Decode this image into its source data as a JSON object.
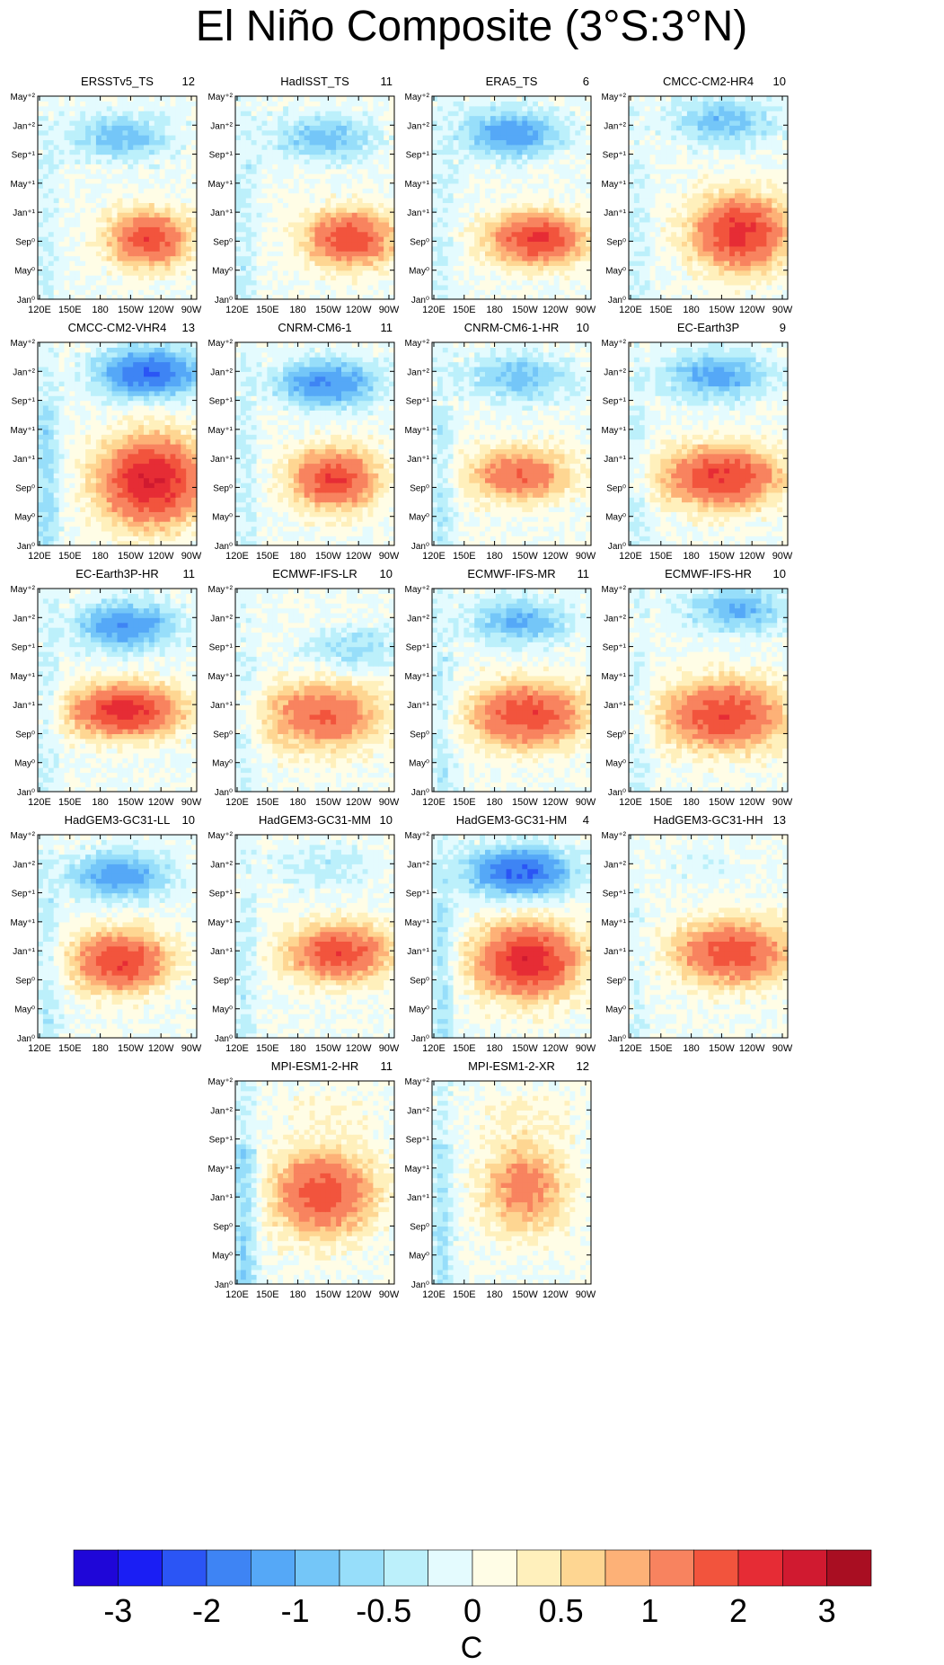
{
  "title": "El Niño Composite (3°S:3°N)",
  "chart_data": {
    "type": "heatmap",
    "variable": "SST anomaly composite (Hovmöller, longitude vs time)",
    "x_ticks": [
      "120E",
      "150E",
      "180",
      "150W",
      "120W",
      "90W"
    ],
    "y_ticks": [
      "Jan⁰",
      "May⁰",
      "Sep⁰",
      "Jan⁺¹",
      "May⁺¹",
      "Sep⁺¹",
      "Jan⁺²",
      "May⁺²"
    ],
    "panels": [
      {
        "name": "ERSSTv5_TS",
        "count": "12",
        "warm_peak": 1.9,
        "warm_center_lon": 0.7,
        "warm_center_time": 0.3,
        "warm_width": 0.24,
        "warm_height": 0.13,
        "cold_peak": -0.9,
        "cold_center_lon": 0.52,
        "cold_center_time": 0.8,
        "west_cold": -0.25
      },
      {
        "name": "HadISST_TS",
        "count": "11",
        "warm_peak": 1.9,
        "warm_center_lon": 0.72,
        "warm_center_time": 0.3,
        "warm_width": 0.26,
        "warm_height": 0.13,
        "cold_peak": -0.9,
        "cold_center_lon": 0.55,
        "cold_center_time": 0.8,
        "west_cold": -0.35
      },
      {
        "name": "ERA5_TS",
        "count": "6",
        "warm_peak": 2.1,
        "warm_center_lon": 0.66,
        "warm_center_time": 0.3,
        "warm_width": 0.28,
        "warm_height": 0.12,
        "cold_peak": -1.3,
        "cold_center_lon": 0.5,
        "cold_center_time": 0.82,
        "west_cold": -0.3
      },
      {
        "name": "CMCC-CM2-HR4",
        "count": "10",
        "warm_peak": 2.2,
        "warm_center_lon": 0.7,
        "warm_center_time": 0.33,
        "warm_width": 0.28,
        "warm_height": 0.17,
        "cold_peak": -0.9,
        "cold_center_lon": 0.6,
        "cold_center_time": 0.88,
        "west_cold": -0.3
      },
      {
        "name": "CMCC-CM2-VHR4",
        "count": "13",
        "warm_peak": 2.6,
        "warm_center_lon": 0.72,
        "warm_center_time": 0.32,
        "warm_width": 0.3,
        "warm_height": 0.2,
        "cold_peak": -2.1,
        "cold_center_lon": 0.7,
        "cold_center_time": 0.85,
        "west_cold": -0.6
      },
      {
        "name": "CNRM-CM6-1",
        "count": "11",
        "warm_peak": 2.0,
        "warm_center_lon": 0.62,
        "warm_center_time": 0.33,
        "warm_width": 0.25,
        "warm_height": 0.14,
        "cold_peak": -1.5,
        "cold_center_lon": 0.58,
        "cold_center_time": 0.8,
        "west_cold": -0.3
      },
      {
        "name": "CNRM-CM6-1-HR",
        "count": "10",
        "warm_peak": 1.5,
        "warm_center_lon": 0.55,
        "warm_center_time": 0.35,
        "warm_width": 0.3,
        "warm_height": 0.12,
        "cold_peak": -0.9,
        "cold_center_lon": 0.55,
        "cold_center_time": 0.83,
        "west_cold": -0.4
      },
      {
        "name": "EC-Earth3P",
        "count": "9",
        "warm_peak": 2.1,
        "warm_center_lon": 0.58,
        "warm_center_time": 0.34,
        "warm_width": 0.34,
        "warm_height": 0.14,
        "cold_peak": -1.2,
        "cold_center_lon": 0.55,
        "cold_center_time": 0.84,
        "west_cold": -0.3
      },
      {
        "name": "EC-Earth3P-HR",
        "count": "11",
        "warm_peak": 2.3,
        "warm_center_lon": 0.55,
        "warm_center_time": 0.4,
        "warm_width": 0.32,
        "warm_height": 0.12,
        "cold_peak": -1.4,
        "cold_center_lon": 0.55,
        "cold_center_time": 0.82,
        "west_cold": -0.3
      },
      {
        "name": "ECMWF-IFS-LR",
        "count": "10",
        "warm_peak": 1.5,
        "warm_center_lon": 0.55,
        "warm_center_time": 0.38,
        "warm_width": 0.36,
        "warm_height": 0.16,
        "cold_peak": -0.6,
        "cold_center_lon": 0.75,
        "cold_center_time": 0.7,
        "west_cold": -0.3
      },
      {
        "name": "ECMWF-IFS-MR",
        "count": "11",
        "warm_peak": 1.9,
        "warm_center_lon": 0.6,
        "warm_center_time": 0.38,
        "warm_width": 0.34,
        "warm_height": 0.15,
        "cold_peak": -1.0,
        "cold_center_lon": 0.55,
        "cold_center_time": 0.84,
        "west_cold": -0.4
      },
      {
        "name": "ECMWF-IFS-HR",
        "count": "10",
        "warm_peak": 1.9,
        "warm_center_lon": 0.6,
        "warm_center_time": 0.38,
        "warm_width": 0.36,
        "warm_height": 0.16,
        "cold_peak": -1.0,
        "cold_center_lon": 0.68,
        "cold_center_time": 0.9,
        "west_cold": -0.3
      },
      {
        "name": "HadGEM3-GC31-LL",
        "count": "10",
        "warm_peak": 2.0,
        "warm_center_lon": 0.52,
        "warm_center_time": 0.38,
        "warm_width": 0.28,
        "warm_height": 0.14,
        "cold_peak": -1.3,
        "cold_center_lon": 0.52,
        "cold_center_time": 0.8,
        "west_cold": -0.4
      },
      {
        "name": "HadGEM3-GC31-MM",
        "count": "10",
        "warm_peak": 1.9,
        "warm_center_lon": 0.65,
        "warm_center_time": 0.42,
        "warm_width": 0.3,
        "warm_height": 0.13,
        "cold_peak": -0.4,
        "cold_center_lon": 0.55,
        "cold_center_time": 0.85,
        "west_cold": -0.35
      },
      {
        "name": "HadGEM3-GC31-HM",
        "count": "4",
        "warm_peak": 2.4,
        "warm_center_lon": 0.6,
        "warm_center_time": 0.38,
        "warm_width": 0.3,
        "warm_height": 0.17,
        "cold_peak": -2.1,
        "cold_center_lon": 0.55,
        "cold_center_time": 0.82,
        "west_cold": -0.5
      },
      {
        "name": "HadGEM3-GC31-HH",
        "count": "13",
        "warm_peak": 1.8,
        "warm_center_lon": 0.65,
        "warm_center_time": 0.42,
        "warm_width": 0.34,
        "warm_height": 0.15,
        "cold_peak": -0.2,
        "cold_center_lon": 0.5,
        "cold_center_time": 0.85,
        "west_cold": -0.2
      },
      {
        "name": "MPI-ESM1-2-HR",
        "count": "11",
        "warm_peak": 1.8,
        "warm_center_lon": 0.55,
        "warm_center_time": 0.45,
        "warm_width": 0.3,
        "warm_height": 0.2,
        "cold_peak": 0.2,
        "cold_center_lon": 0.6,
        "cold_center_time": 0.85,
        "west_cold": -0.7
      },
      {
        "name": "MPI-ESM1-2-XR",
        "count": "12",
        "warm_peak": 1.2,
        "warm_center_lon": 0.58,
        "warm_center_time": 0.48,
        "warm_width": 0.25,
        "warm_height": 0.22,
        "cold_peak": 0.2,
        "cold_center_lon": 0.6,
        "cold_center_time": 0.85,
        "west_cold": -0.5
      }
    ],
    "colorbar": {
      "levels": [
        -3,
        -2.5,
        -2,
        -1.5,
        -1,
        -0.75,
        -0.5,
        -0.25,
        0,
        0.25,
        0.5,
        0.75,
        1,
        1.5,
        2,
        2.5,
        3
      ],
      "colors": [
        "#1f06d8",
        "#1a1ef4",
        "#2b55f5",
        "#3e84f4",
        "#55a8f7",
        "#74c6f8",
        "#97defa",
        "#bcf0fb",
        "#e4fbfe",
        "#fffde6",
        "#fff0bc",
        "#fed692",
        "#fdb177",
        "#f8835f",
        "#f2543d",
        "#e62c35",
        "#d01a30",
        "#a90e22"
      ],
      "tick_labels": [
        "-3",
        "-2",
        "-1",
        "-0.5",
        "0",
        "0.5",
        "1",
        "2",
        "3"
      ],
      "units": "C"
    }
  }
}
